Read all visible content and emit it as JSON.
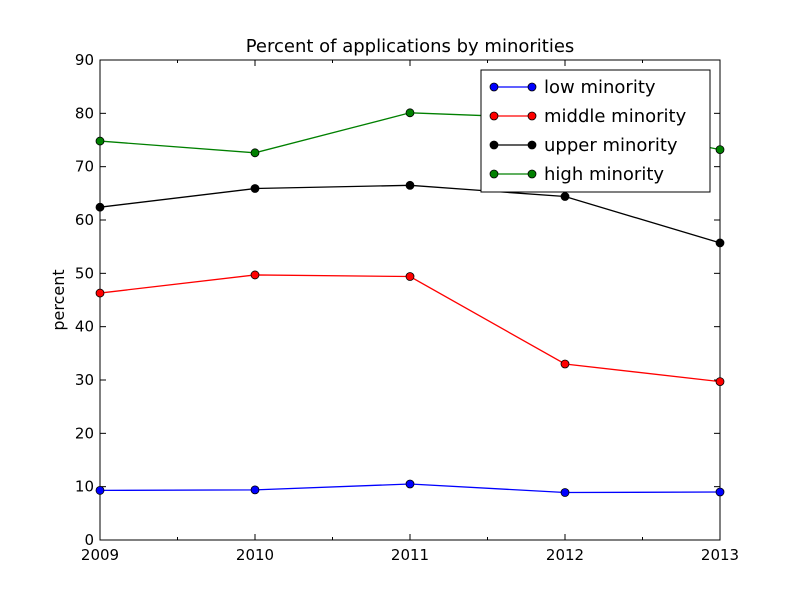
{
  "chart_data": {
    "type": "line",
    "title": "Percent of applications by minorities",
    "xlabel": "",
    "ylabel": "percent",
    "x": [
      2009,
      2010,
      2011,
      2012,
      2013
    ],
    "xlim": [
      2009,
      2013
    ],
    "ylim": [
      0,
      90
    ],
    "xticks": [
      2009,
      2010,
      2011,
      2012,
      2013
    ],
    "yticks": [
      0,
      10,
      20,
      30,
      40,
      50,
      60,
      70,
      80,
      90
    ],
    "grid": false,
    "legend_position": "top-right",
    "series": [
      {
        "name": "low minority",
        "color": "#0000ff",
        "values": [
          9.3,
          9.4,
          10.5,
          8.9,
          9.0
        ]
      },
      {
        "name": "middle minority",
        "color": "#ff0000",
        "values": [
          46.3,
          49.7,
          49.4,
          33.0,
          29.7
        ]
      },
      {
        "name": "upper minority",
        "color": "#000000",
        "values": [
          62.4,
          65.9,
          66.5,
          64.4,
          55.7
        ]
      },
      {
        "name": "high minority",
        "color": "#008000",
        "values": [
          74.8,
          72.6,
          80.1,
          79.0,
          73.2
        ]
      }
    ]
  }
}
